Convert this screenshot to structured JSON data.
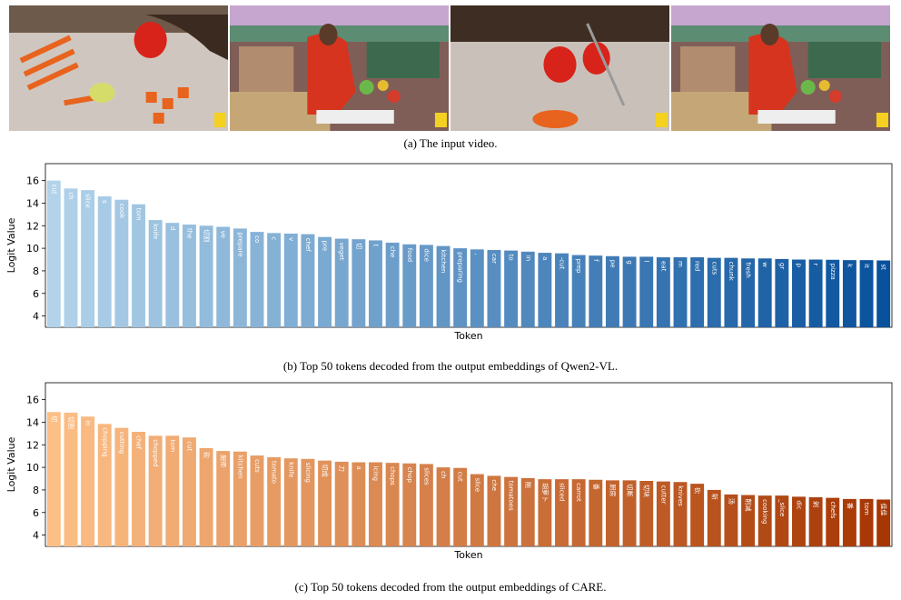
{
  "captions": {
    "a": "(a) The input video.",
    "b": "(b) Top 50 tokens decoded from the output embeddings of Qwen2-VL.",
    "c": "(c) Top 50 tokens decoded from the output embeddings of CARE."
  },
  "chart_data": [
    {
      "type": "bar",
      "xlabel": "Token",
      "ylabel": "Logit Value",
      "ylim": [
        3,
        17.5
      ],
      "yticks": [
        4,
        6,
        8,
        10,
        12,
        14,
        16
      ],
      "colormap": "blues",
      "color_start": "#b2d3ea",
      "color_end": "#08519c",
      "categories": [
        "cut",
        "ch",
        "slice",
        "s",
        "cook",
        "tom",
        "knife",
        "d",
        "the",
        "切割",
        "ve",
        "prepare",
        "co",
        "c",
        "v",
        "chef",
        "pre",
        "veget",
        "切",
        "t",
        "che",
        "food",
        "dice",
        "kitchen",
        "preparing",
        ",",
        "car",
        "to",
        "in",
        "a",
        "-cut",
        "prep",
        "f",
        "pe",
        "g",
        "l",
        "eat",
        "m",
        "red",
        "cuts",
        "chunk",
        "fresh",
        "w",
        "gr",
        "p",
        "r",
        "pizza",
        "k",
        "it",
        "st"
      ],
      "values": [
        16.0,
        15.3,
        15.15,
        14.6,
        14.3,
        13.9,
        12.5,
        12.25,
        12.1,
        12.0,
        11.9,
        11.75,
        11.45,
        11.35,
        11.3,
        11.25,
        11.0,
        10.85,
        10.8,
        10.7,
        10.5,
        10.35,
        10.3,
        10.2,
        10.0,
        9.9,
        9.85,
        9.8,
        9.7,
        9.6,
        9.55,
        9.4,
        9.35,
        9.3,
        9.25,
        9.25,
        9.2,
        9.2,
        9.2,
        9.15,
        9.15,
        9.1,
        9.1,
        9.05,
        9.0,
        9.0,
        8.98,
        8.95,
        8.95,
        8.92
      ]
    },
    {
      "type": "bar",
      "xlabel": "Token",
      "ylabel": "Logit Value",
      "ylim": [
        3,
        17.5
      ],
      "yticks": [
        4,
        6,
        8,
        10,
        12,
        14,
        16
      ],
      "colormap": "oranges",
      "color_start": "#fdbf86",
      "color_end": "#a63603",
      "categories": [
        "切",
        "切割",
        "in",
        "chopping",
        "cutting",
        "chef",
        "chopped",
        "tom",
        "cut",
        "砍",
        "厨师",
        "kitchen",
        "cuts",
        "tomato",
        "knife",
        "slicing",
        "切成",
        "刀",
        "a",
        "icing",
        "chops",
        "chop",
        "slices",
        "ch",
        "cut",
        "slice",
        "che",
        "tomatoes",
        "削",
        "胡萝卜",
        "sliced",
        "carrot",
        "番",
        "厨房",
        "切断",
        "切块",
        "cutter",
        "knives",
        "砍",
        "斩",
        "汤",
        "削减",
        "cooking",
        "_slice",
        "dic",
        "剁",
        "chefs",
        "番",
        "tom",
        "佳佳"
      ],
      "values": [
        14.9,
        14.85,
        14.5,
        13.85,
        13.5,
        13.15,
        12.8,
        12.8,
        12.65,
        11.7,
        11.45,
        11.4,
        11.05,
        10.9,
        10.8,
        10.75,
        10.6,
        10.5,
        10.45,
        10.45,
        10.4,
        10.35,
        10.3,
        10.0,
        9.95,
        9.4,
        9.25,
        9.15,
        9.05,
        8.95,
        8.95,
        8.95,
        8.9,
        8.85,
        8.85,
        8.8,
        8.75,
        8.7,
        8.55,
        8.0,
        7.6,
        7.55,
        7.5,
        7.5,
        7.4,
        7.35,
        7.3,
        7.2,
        7.2,
        7.15
      ]
    }
  ]
}
